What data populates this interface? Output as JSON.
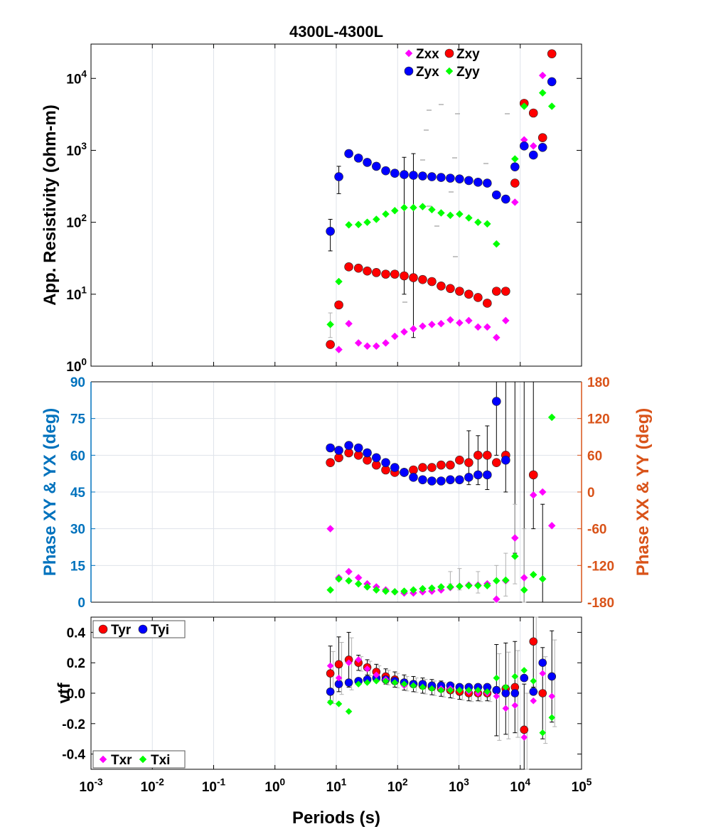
{
  "figure": {
    "title": "4300L-4300L"
  },
  "colors": {
    "xx": "#ff00ff",
    "xy": "#ff0000",
    "yx": "#0000ff",
    "yy": "#00ff00",
    "left_axis": "#0072bd",
    "right_axis": "#d95319",
    "black": "#000000",
    "grid": "#dfe3ea",
    "errbar_grey": "#b0b0b0"
  },
  "chart_data": [
    {
      "type": "scatter",
      "title": "4300L-4300L",
      "xlabel": "",
      "ylabel": "App. Resistivity (ohm-m)",
      "xscale": "log",
      "yscale": "log",
      "xlim": [
        0.001,
        100000
      ],
      "ylim": [
        1,
        30000
      ],
      "x_ticks": [
        "10^-3",
        "10^-2",
        "10^-1",
        "10^0",
        "10^1",
        "10^2",
        "10^3",
        "10^4",
        "10^5"
      ],
      "y_ticks": [
        "10^0",
        "10^1",
        "10^2",
        "10^3",
        "10^4"
      ],
      "grid": "x-only",
      "legend": [
        "Zxx",
        "Zxy",
        "Zyx",
        "Zyy"
      ],
      "legend_position": "top-right",
      "series": [
        {
          "name": "Zxx",
          "color": "xx",
          "marker": "diamond",
          "x": [
            8,
            11,
            16,
            23,
            32,
            45,
            64,
            90,
            128,
            181,
            256,
            362,
            512,
            724,
            1024,
            1448,
            2048,
            2896,
            4096,
            5793,
            8192,
            11585,
            16384,
            23170,
            32768
          ],
          "y": [
            null,
            1.7,
            3.9,
            2.1,
            1.9,
            1.9,
            2.1,
            2.6,
            3.0,
            3.3,
            3.6,
            3.8,
            3.9,
            4.4,
            4.0,
            4.3,
            3.5,
            3.5,
            2.5,
            4.3,
            190,
            1400,
            1150,
            11000,
            null
          ]
        },
        {
          "name": "Zxy",
          "color": "xy",
          "marker": "circle",
          "x": [
            8,
            11,
            16,
            23,
            32,
            45,
            64,
            90,
            128,
            181,
            256,
            362,
            512,
            724,
            1024,
            1448,
            2048,
            2896,
            4096,
            5793,
            8192,
            11585,
            16384,
            23170,
            32768
          ],
          "y": [
            2.0,
            7.1,
            24,
            23,
            21,
            20,
            19,
            19,
            18,
            17,
            16,
            15,
            13,
            12,
            11,
            10,
            9,
            7.5,
            11,
            11,
            350,
            4500,
            3300,
            1500,
            22000
          ],
          "err": [
            null,
            null,
            null,
            null,
            null,
            null,
            null,
            7,
            null,
            null,
            null,
            null,
            null,
            null,
            null,
            null,
            null,
            null,
            null,
            null,
            null,
            null,
            null,
            null,
            null
          ]
        },
        {
          "name": "Zyx",
          "color": "yx",
          "marker": "circle",
          "x": [
            8,
            11,
            16,
            23,
            32,
            45,
            64,
            90,
            128,
            181,
            256,
            362,
            512,
            724,
            1024,
            1448,
            2048,
            2896,
            4096,
            5793,
            8192,
            11585,
            16384,
            23170,
            32768
          ],
          "y": [
            75,
            430,
            900,
            780,
            680,
            600,
            520,
            480,
            460,
            450,
            440,
            430,
            420,
            410,
            400,
            380,
            360,
            350,
            240,
            210,
            590,
            1150,
            860,
            1100,
            9000
          ]
        },
        {
          "name": "Zyy",
          "color": "yy",
          "marker": "diamond",
          "x": [
            8,
            11,
            16,
            23,
            32,
            45,
            64,
            90,
            128,
            181,
            256,
            362,
            512,
            724,
            1024,
            1448,
            2048,
            2896,
            4096,
            5793,
            8192,
            11585,
            16384,
            23170,
            32768
          ],
          "y": [
            3.8,
            15,
            92,
            93,
            100,
            110,
            130,
            145,
            160,
            160,
            165,
            150,
            135,
            125,
            130,
            115,
            100,
            95,
            50,
            null,
            760,
            4100,
            null,
            6300,
            4100
          ]
        }
      ]
    },
    {
      "type": "scatter",
      "ylabel": "Phase XY & YX (deg)",
      "ylabel_right": "Phase XX & YY (deg)",
      "xscale": "log",
      "xlim": [
        0.001,
        100000
      ],
      "ylim": [
        0,
        90
      ],
      "ylim_right": [
        -180,
        180
      ],
      "y_ticks": [
        0,
        15,
        30,
        45,
        60,
        75,
        90
      ],
      "y_ticks_right": [
        -180,
        -120,
        -60,
        0,
        60,
        120,
        180
      ],
      "grid": "both",
      "series": [
        {
          "name": "XY",
          "color": "xy",
          "axis": "left",
          "x": [
            8,
            11,
            16,
            23,
            32,
            45,
            64,
            90,
            128,
            181,
            256,
            362,
            512,
            724,
            1024,
            1448,
            2048,
            2896,
            4096,
            5793,
            16384
          ],
          "y": [
            57,
            59,
            61,
            60,
            58,
            56,
            54,
            53,
            53,
            54,
            55,
            55,
            56,
            56,
            58,
            57,
            60,
            60,
            57,
            60,
            52
          ]
        },
        {
          "name": "YX",
          "color": "yx",
          "axis": "left",
          "x": [
            8,
            11,
            16,
            23,
            32,
            45,
            64,
            90,
            128,
            181,
            256,
            362,
            512,
            724,
            1024,
            1448,
            2048,
            2896,
            4096,
            5793
          ],
          "y": [
            63,
            62,
            64,
            63,
            61,
            59,
            57,
            55,
            53,
            51,
            50,
            49.5,
            49.5,
            50,
            50,
            51,
            52,
            52,
            82,
            58
          ]
        },
        {
          "name": "XX",
          "color": "xx",
          "axis": "right",
          "x": [
            8,
            11,
            16,
            23,
            32,
            45,
            64,
            90,
            128,
            181,
            256,
            362,
            512,
            724,
            1024,
            1448,
            2048,
            2896,
            4096,
            5793,
            8192,
            11585,
            16384,
            23170,
            32768
          ],
          "y": [
            -60,
            -140,
            -130,
            -140,
            -150,
            -155,
            -160,
            -163,
            -165,
            -165,
            -163,
            -162,
            -160,
            -156,
            -154,
            -152,
            -152,
            -150,
            -175,
            -145,
            -75,
            -140,
            -5,
            0,
            -55
          ]
        },
        {
          "name": "YY",
          "color": "yy",
          "axis": "right",
          "x": [
            8,
            11,
            16,
            23,
            32,
            45,
            64,
            90,
            128,
            181,
            256,
            362,
            512,
            724,
            1024,
            1448,
            2048,
            2896,
            4096,
            5793,
            8192,
            11585,
            16384,
            23170,
            32768
          ],
          "y": [
            -160,
            -142,
            -145,
            -150,
            -155,
            -160,
            -162,
            -163,
            -162,
            -160,
            -158,
            -157,
            -155,
            -155,
            -154,
            -153,
            -153,
            -153,
            -145,
            -144,
            -105,
            -160,
            -135,
            -142,
            122
          ]
        }
      ]
    },
    {
      "type": "scatter",
      "ylabel": "vtf",
      "xlabel": "Periods (s)",
      "xscale": "log",
      "xlim": [
        0.001,
        100000
      ],
      "ylim": [
        -0.5,
        0.5
      ],
      "y_ticks": [
        -0.4,
        -0.2,
        0.0,
        0.2,
        0.4
      ],
      "grid": "x-only",
      "legend_top": [
        "Tyr",
        "Tyi"
      ],
      "legend_bottom": [
        "Txr",
        "Txi"
      ],
      "series": [
        {
          "name": "Tyr",
          "color": "xy",
          "x": [
            8,
            11,
            16,
            23,
            32,
            45,
            64,
            90,
            128,
            181,
            256,
            362,
            512,
            724,
            1024,
            1448,
            2048,
            2896,
            4096,
            5793,
            8192,
            11585,
            16384,
            23170,
            32768
          ],
          "y": [
            0.13,
            0.19,
            0.22,
            0.2,
            0.17,
            0.14,
            0.11,
            0.09,
            0.07,
            0.06,
            0.05,
            0.04,
            0.03,
            0.02,
            0.01,
            0.0,
            0.0,
            0.0,
            0.02,
            0.03,
            0.04,
            -0.24,
            0.34,
            0.0,
            0.11
          ]
        },
        {
          "name": "Tyi",
          "color": "yx",
          "x": [
            8,
            11,
            16,
            23,
            32,
            45,
            64,
            90,
            128,
            181,
            256,
            362,
            512,
            724,
            1024,
            1448,
            2048,
            2896,
            4096,
            5793,
            8192,
            11585,
            16384,
            23170,
            32768
          ],
          "y": [
            0.01,
            0.06,
            0.07,
            0.08,
            0.09,
            0.1,
            0.09,
            0.08,
            0.07,
            0.06,
            0.06,
            0.05,
            0.05,
            0.05,
            0.04,
            0.04,
            0.04,
            0.04,
            0.02,
            0.0,
            0.0,
            0.1,
            0.01,
            0.2,
            0.11
          ]
        },
        {
          "name": "Txr",
          "color": "xx",
          "x": [
            8,
            11,
            16,
            23,
            32,
            45,
            64,
            90,
            128,
            181,
            256,
            362,
            512,
            724,
            1024,
            1448,
            2048,
            2896,
            4096,
            5793,
            8192,
            11585,
            16384,
            23170,
            32768
          ],
          "y": [
            0.18,
            0.1,
            0.2,
            0.22,
            0.16,
            0.12,
            0.09,
            0.07,
            0.05,
            0.05,
            0.04,
            0.03,
            0.03,
            0.03,
            0.02,
            0.01,
            0.0,
            0.0,
            -0.02,
            -0.1,
            -0.08,
            -0.29,
            -0.05,
            0.13,
            -0.02
          ]
        },
        {
          "name": "Txi",
          "color": "yy",
          "x": [
            8,
            11,
            16,
            23,
            32,
            45,
            64,
            90,
            128,
            181,
            256,
            362,
            512,
            724,
            1024,
            1448,
            2048,
            2896,
            4096,
            5793,
            8192,
            11585,
            16384,
            23170,
            32768
          ],
          "y": [
            -0.06,
            -0.07,
            -0.12,
            0.06,
            0.07,
            0.08,
            0.08,
            0.07,
            0.06,
            0.05,
            0.04,
            0.03,
            0.02,
            0.02,
            0.02,
            0.02,
            0.02,
            0.01,
            0.1,
            0.04,
            0.11,
            0.15,
            0.08,
            -0.26,
            -0.16
          ]
        }
      ]
    }
  ]
}
